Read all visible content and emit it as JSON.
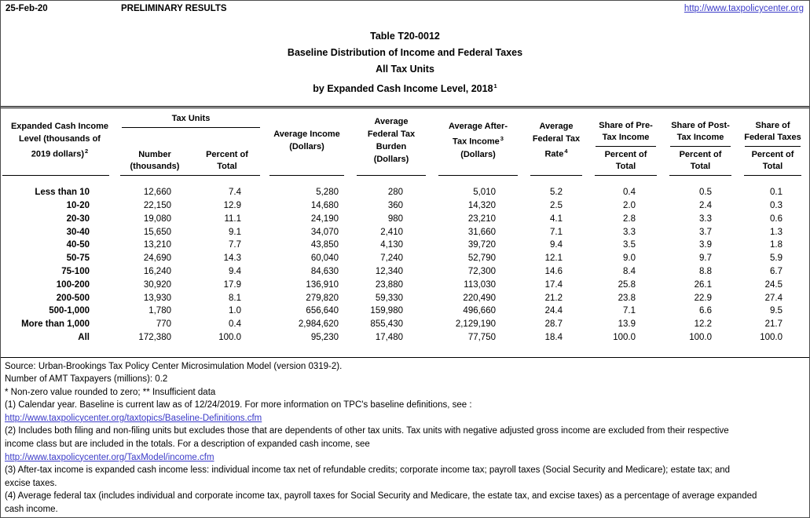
{
  "colors": {
    "link_blue": "#3b3bc8",
    "text_black": "#000000",
    "page_border": "#4d4d4d"
  },
  "page": {
    "date": "25-Feb-20",
    "preliminary": "PRELIMINARY RESULTS",
    "site_url": "http://www.taxpolicycenter.org"
  },
  "title": {
    "line1": "Table T20-0012",
    "line2": "Baseline Distribution of Income and Federal Taxes",
    "line3": "All Tax Units",
    "line4": "by Expanded Cash Income Level, 2018",
    "line4_sup": "1"
  },
  "table": {
    "col1_header": {
      "line1": "Expanded Cash Income",
      "line2": "Level (thousands of",
      "line3": "2019 dollars)",
      "sup": "2"
    },
    "groups": {
      "tax_units": {
        "label": "Tax Units",
        "sub1_line1": "Number",
        "sub1_line2": "(thousands)",
        "sub2_line1": "Percent of",
        "sub2_line2": "Total"
      },
      "avg_income": {
        "line1": "Average Income",
        "line2": "(Dollars)"
      },
      "avg_burden": {
        "line1": "Average",
        "line2": "Federal Tax",
        "line3": "Burden",
        "line4": "(Dollars)"
      },
      "avg_after": {
        "line1": "Average After-",
        "line2": "Tax Income",
        "sup": "3",
        "line3": "(Dollars)"
      },
      "avg_rate": {
        "line1": "Average",
        "line2": "Federal Tax",
        "line3": "Rate",
        "sup": "4"
      },
      "share_pre": {
        "line1": "Share of Pre-",
        "line2": "Tax Income",
        "sub1": "Percent of",
        "sub2": "Total"
      },
      "share_post": {
        "line1": "Share of Post-",
        "line2": "Tax Income",
        "sub1": "Percent of",
        "sub2": "Total"
      },
      "share_fed": {
        "line1": "Share of",
        "line2": "Federal Taxes",
        "sub1": "Percent of",
        "sub2": "Total"
      }
    },
    "rows": [
      {
        "label": "Less than 10",
        "values": [
          "12,660",
          "7.4",
          "5,280",
          "280",
          "5,010",
          "5.2",
          "0.4",
          "0.5",
          "0.1"
        ]
      },
      {
        "label": "10-20",
        "values": [
          "22,150",
          "12.9",
          "14,680",
          "360",
          "14,320",
          "2.5",
          "2.0",
          "2.4",
          "0.3"
        ]
      },
      {
        "label": "20-30",
        "values": [
          "19,080",
          "11.1",
          "24,190",
          "980",
          "23,210",
          "4.1",
          "2.8",
          "3.3",
          "0.6"
        ]
      },
      {
        "label": "30-40",
        "values": [
          "15,650",
          "9.1",
          "34,070",
          "2,410",
          "31,660",
          "7.1",
          "3.3",
          "3.7",
          "1.3"
        ]
      },
      {
        "label": "40-50",
        "values": [
          "13,210",
          "7.7",
          "43,850",
          "4,130",
          "39,720",
          "9.4",
          "3.5",
          "3.9",
          "1.8"
        ]
      },
      {
        "label": "50-75",
        "values": [
          "24,690",
          "14.3",
          "60,040",
          "7,240",
          "52,790",
          "12.1",
          "9.0",
          "9.7",
          "5.9"
        ]
      },
      {
        "label": "75-100",
        "values": [
          "16,240",
          "9.4",
          "84,630",
          "12,340",
          "72,300",
          "14.6",
          "8.4",
          "8.8",
          "6.7"
        ]
      },
      {
        "label": "100-200",
        "values": [
          "30,920",
          "17.9",
          "136,910",
          "23,880",
          "113,030",
          "17.4",
          "25.8",
          "26.1",
          "24.5"
        ]
      },
      {
        "label": "200-500",
        "values": [
          "13,930",
          "8.1",
          "279,820",
          "59,330",
          "220,490",
          "21.2",
          "23.8",
          "22.9",
          "27.4"
        ]
      },
      {
        "label": "500-1,000",
        "values": [
          "1,780",
          "1.0",
          "656,640",
          "159,980",
          "496,660",
          "24.4",
          "7.1",
          "6.6",
          "9.5"
        ]
      },
      {
        "label": "More than 1,000",
        "values": [
          "770",
          "0.4",
          "2,984,620",
          "855,430",
          "2,129,190",
          "28.7",
          "13.9",
          "12.2",
          "21.7"
        ]
      },
      {
        "label": "All",
        "values": [
          "172,380",
          "100.0",
          "95,230",
          "17,480",
          "77,750",
          "18.4",
          "100.0",
          "100.0",
          "100.0"
        ]
      }
    ]
  },
  "footnotes": {
    "lines": [
      {
        "type": "text",
        "text": "Source: Urban-Brookings Tax Policy Center Microsimulation Model (version 0319-2)."
      },
      {
        "type": "text",
        "text": "Number of AMT Taxpayers (millions): 0.2"
      },
      {
        "type": "text",
        "text": "* Non-zero value rounded to zero; ** Insufficient data"
      },
      {
        "type": "text",
        "text": "(1) Calendar year. Baseline is current law as of 12/24/2019. For more information on TPC's baseline definitions, see :"
      },
      {
        "type": "link",
        "text": "http://www.taxpolicycenter.org/taxtopics/Baseline-Definitions.cfm"
      },
      {
        "type": "text",
        "text": "(2) Includes both filing and non-filing units but excludes those that are dependents of other tax units. Tax units with negative adjusted gross income are excluded from their respective"
      },
      {
        "type": "text",
        "text": "income class but are included in the totals. For a description of expanded cash income, see"
      },
      {
        "type": "link",
        "text": "http://www.taxpolicycenter.org/TaxModel/income.cfm"
      },
      {
        "type": "text",
        "text": "(3) After-tax income is expanded cash income less: individual income tax net of refundable credits; corporate income tax; payroll taxes (Social Security and Medicare); estate tax; and"
      },
      {
        "type": "text",
        "text": "excise taxes."
      },
      {
        "type": "text",
        "text": "(4) Average federal tax (includes individual and corporate income tax, payroll taxes for Social Security and Medicare, the estate tax, and excise taxes) as a percentage of average expanded"
      },
      {
        "type": "text",
        "text": "cash income."
      }
    ]
  }
}
